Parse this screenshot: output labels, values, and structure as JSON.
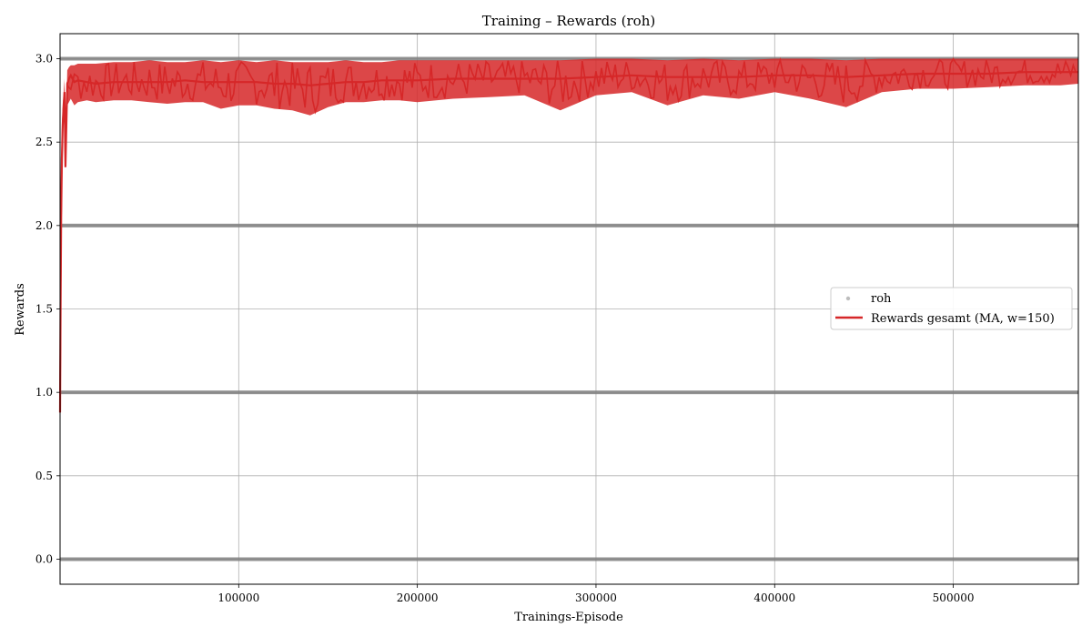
{
  "chart_data": {
    "type": "line",
    "title": "Training – Rewards (roh)",
    "xlabel": "Trainings-Episode",
    "ylabel": "Rewards",
    "xlim": [
      0,
      570000
    ],
    "ylim": [
      -0.15,
      3.15
    ],
    "xticks": [
      100000,
      200000,
      300000,
      400000,
      500000
    ],
    "xtick_labels": [
      "100000",
      "200000",
      "300000",
      "400000",
      "500000"
    ],
    "yticks": [
      0.0,
      0.5,
      1.0,
      1.5,
      2.0,
      2.5,
      3.0
    ],
    "ytick_labels": [
      "0.0",
      "0.5",
      "1.0",
      "1.5",
      "2.0",
      "2.5",
      "3.0"
    ],
    "grid": true,
    "legend_position": "center-right",
    "series": [
      {
        "name": "roh",
        "kind": "scatter",
        "color": "#bdbdbd",
        "levels": [
          0,
          1,
          2,
          3
        ]
      },
      {
        "name": "Rewards gesamt (MA, w=150)",
        "kind": "line",
        "color": "#d62728",
        "x": [
          0,
          300,
          600,
          1000,
          1500,
          2000,
          2500,
          3000,
          4000,
          5000,
          6000,
          8000,
          10000,
          15000,
          20000,
          30000,
          40000,
          50000,
          60000,
          70000,
          80000,
          90000,
          100000,
          110000,
          120000,
          130000,
          140000,
          150000,
          160000,
          170000,
          180000,
          190000,
          200000,
          220000,
          240000,
          260000,
          280000,
          300000,
          320000,
          340000,
          360000,
          380000,
          400000,
          420000,
          440000,
          460000,
          480000,
          500000,
          520000,
          540000,
          560000,
          570000
        ],
        "y": [
          0.88,
          1.55,
          2.05,
          2.4,
          2.6,
          2.72,
          2.8,
          2.35,
          2.85,
          2.88,
          2.9,
          2.86,
          2.87,
          2.86,
          2.85,
          2.86,
          2.86,
          2.86,
          2.86,
          2.87,
          2.86,
          2.86,
          2.86,
          2.86,
          2.85,
          2.85,
          2.84,
          2.85,
          2.86,
          2.86,
          2.87,
          2.87,
          2.87,
          2.88,
          2.88,
          2.88,
          2.88,
          2.89,
          2.9,
          2.89,
          2.89,
          2.89,
          2.9,
          2.9,
          2.89,
          2.9,
          2.91,
          2.91,
          2.91,
          2.92,
          2.92,
          2.92
        ],
        "band_min": [
          0.88,
          1.55,
          2.05,
          2.35,
          2.55,
          2.65,
          2.7,
          2.34,
          2.72,
          2.74,
          2.76,
          2.72,
          2.74,
          2.75,
          2.74,
          2.75,
          2.75,
          2.74,
          2.73,
          2.74,
          2.74,
          2.7,
          2.72,
          2.72,
          2.7,
          2.69,
          2.66,
          2.71,
          2.74,
          2.74,
          2.75,
          2.75,
          2.74,
          2.76,
          2.77,
          2.78,
          2.69,
          2.78,
          2.8,
          2.72,
          2.78,
          2.76,
          2.8,
          2.76,
          2.71,
          2.8,
          2.82,
          2.82,
          2.83,
          2.84,
          2.84,
          2.85
        ],
        "band_max": [
          0.88,
          1.6,
          2.1,
          2.5,
          2.7,
          2.8,
          2.88,
          2.4,
          2.93,
          2.95,
          2.96,
          2.96,
          2.97,
          2.97,
          2.97,
          2.98,
          2.98,
          2.99,
          2.98,
          2.98,
          2.99,
          2.98,
          2.99,
          2.98,
          2.99,
          2.98,
          2.98,
          2.98,
          2.99,
          2.98,
          2.98,
          2.99,
          2.99,
          2.99,
          2.99,
          2.99,
          2.99,
          3.0,
          3.0,
          2.99,
          3.0,
          2.99,
          3.0,
          3.0,
          2.99,
          3.0,
          3.0,
          3.0,
          3.0,
          3.0,
          3.0,
          3.0
        ]
      }
    ]
  }
}
